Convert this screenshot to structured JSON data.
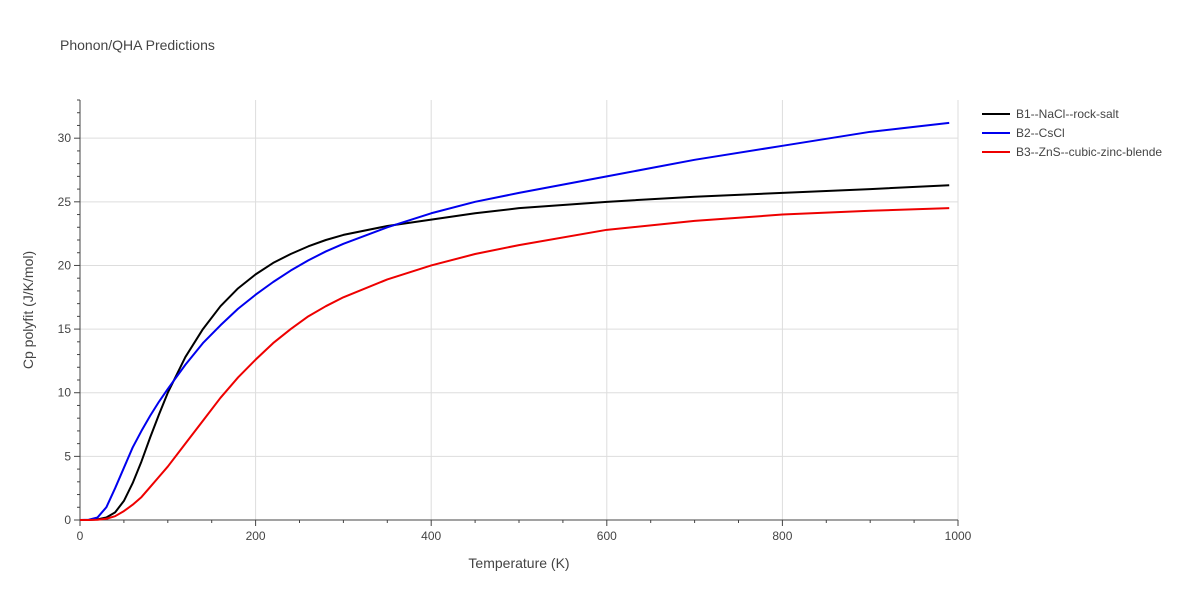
{
  "chart_data": {
    "type": "line",
    "title": "Phonon/QHA Predictions",
    "xlabel": "Temperature (K)",
    "ylabel": "Cp polyfit (J/K/mol)",
    "xlim": [
      0,
      1000
    ],
    "ylim": [
      0,
      33
    ],
    "xticks": [
      0,
      200,
      400,
      600,
      800,
      1000
    ],
    "yticks": [
      0,
      5,
      10,
      15,
      20,
      25,
      30
    ],
    "grid": true,
    "legend_position": "top-right-outside",
    "series": [
      {
        "name": "B1--NaCl--rock-salt",
        "color": "#000000",
        "x": [
          0,
          10,
          20,
          30,
          40,
          50,
          60,
          70,
          80,
          90,
          100,
          120,
          140,
          160,
          180,
          200,
          220,
          240,
          260,
          280,
          300,
          350,
          400,
          450,
          500,
          600,
          700,
          800,
          900,
          990
        ],
        "y": [
          0,
          0.01,
          0.05,
          0.2,
          0.6,
          1.5,
          2.9,
          4.6,
          6.5,
          8.3,
          10.0,
          12.8,
          15.0,
          16.8,
          18.2,
          19.3,
          20.2,
          20.9,
          21.5,
          22.0,
          22.4,
          23.1,
          23.6,
          24.1,
          24.5,
          25.0,
          25.4,
          25.7,
          26.0,
          26.3
        ]
      },
      {
        "name": "B2--CsCl",
        "color": "#0000ee",
        "x": [
          0,
          10,
          20,
          30,
          40,
          50,
          60,
          70,
          80,
          90,
          100,
          120,
          140,
          160,
          180,
          200,
          220,
          240,
          260,
          280,
          300,
          350,
          400,
          450,
          500,
          600,
          700,
          800,
          900,
          990
        ],
        "y": [
          0,
          0.02,
          0.2,
          1.0,
          2.5,
          4.1,
          5.7,
          7.0,
          8.2,
          9.3,
          10.3,
          12.2,
          13.9,
          15.3,
          16.6,
          17.7,
          18.7,
          19.6,
          20.4,
          21.1,
          21.7,
          23.0,
          24.1,
          25.0,
          25.7,
          27.0,
          28.3,
          29.4,
          30.5,
          31.2
        ]
      },
      {
        "name": "B3--ZnS--cubic-zinc-blende",
        "color": "#ee0000",
        "x": [
          0,
          10,
          20,
          30,
          40,
          50,
          60,
          70,
          80,
          90,
          100,
          120,
          140,
          160,
          180,
          200,
          220,
          240,
          260,
          280,
          300,
          350,
          400,
          450,
          500,
          600,
          700,
          800,
          900,
          990
        ],
        "y": [
          0,
          0.0,
          0.02,
          0.1,
          0.3,
          0.7,
          1.2,
          1.8,
          2.6,
          3.4,
          4.2,
          6.0,
          7.8,
          9.6,
          11.2,
          12.6,
          13.9,
          15.0,
          16.0,
          16.8,
          17.5,
          18.9,
          20.0,
          20.9,
          21.6,
          22.8,
          23.5,
          24.0,
          24.3,
          24.5
        ]
      }
    ]
  }
}
